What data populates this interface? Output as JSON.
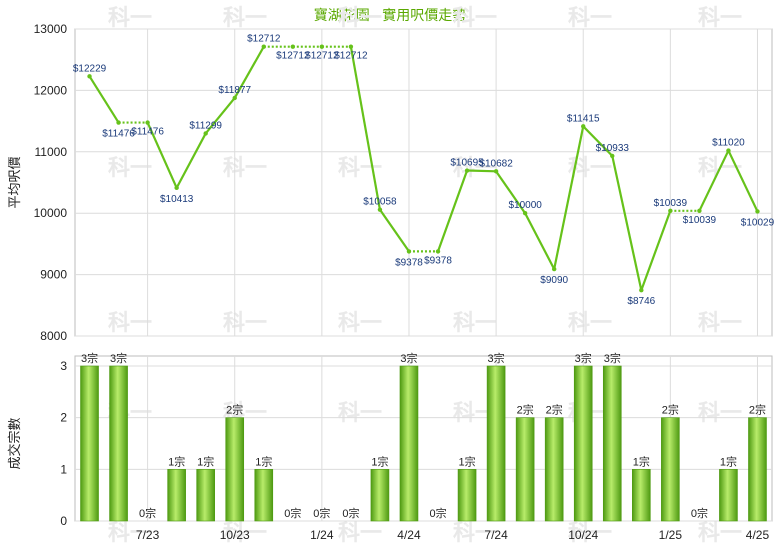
{
  "title": "寶湖花園 - 實用呎價走勢",
  "watermark": "科一",
  "chart_data": [
    {
      "type": "line",
      "ylabel": "平均呎價",
      "ylim": [
        8000,
        13000
      ],
      "yticks": [
        "8000",
        "9000",
        "10000",
        "11000",
        "12000",
        "13000"
      ],
      "values": [
        12229,
        11476,
        11476,
        10413,
        11299,
        11877,
        12712,
        12712,
        12712,
        12712,
        10058,
        9378,
        9378,
        10695,
        10682,
        10000,
        9090,
        11415,
        10933,
        8746,
        10039,
        10039,
        11020,
        10029
      ],
      "labels": [
        "$12229",
        "$11476",
        "$11476",
        "$10413",
        "$11299",
        "$11877",
        "$12712",
        "$12712",
        "$12712",
        "$12712",
        "$10058",
        "$9378",
        "$9378",
        "$10695",
        "$10682",
        "$10000",
        "$9090",
        "$11415",
        "$10933",
        "$8746",
        "$10039",
        "$10039",
        "$11020",
        "$10029"
      ],
      "grid": true,
      "color": "#66c21a"
    },
    {
      "type": "bar",
      "ylabel": "成交宗數",
      "ylim": [
        0,
        3
      ],
      "yticks": [
        "0",
        "1",
        "2",
        "3"
      ],
      "values": [
        3,
        3,
        0,
        1,
        1,
        2,
        1,
        0,
        0,
        0,
        1,
        3,
        0,
        1,
        3,
        2,
        2,
        3,
        3,
        1,
        2,
        0,
        1,
        2
      ],
      "labels": [
        "3宗",
        "3宗",
        "0宗",
        "1宗",
        "1宗",
        "2宗",
        "1宗",
        "0宗",
        "0宗",
        "0宗",
        "1宗",
        "3宗",
        "0宗",
        "1宗",
        "3宗",
        "2宗",
        "2宗",
        "3宗",
        "3宗",
        "1宗",
        "2宗",
        "0宗",
        "1宗",
        "2宗"
      ],
      "xticks": [
        {
          "index": 2,
          "label": "7/23"
        },
        {
          "index": 5,
          "label": "10/23"
        },
        {
          "index": 8,
          "label": "1/24"
        },
        {
          "index": 11,
          "label": "4/24"
        },
        {
          "index": 14,
          "label": "7/24"
        },
        {
          "index": 17,
          "label": "10/24"
        },
        {
          "index": 20,
          "label": "1/25"
        },
        {
          "index": 23,
          "label": "4/25"
        }
      ],
      "grid": true,
      "color": "#66c21a"
    }
  ]
}
